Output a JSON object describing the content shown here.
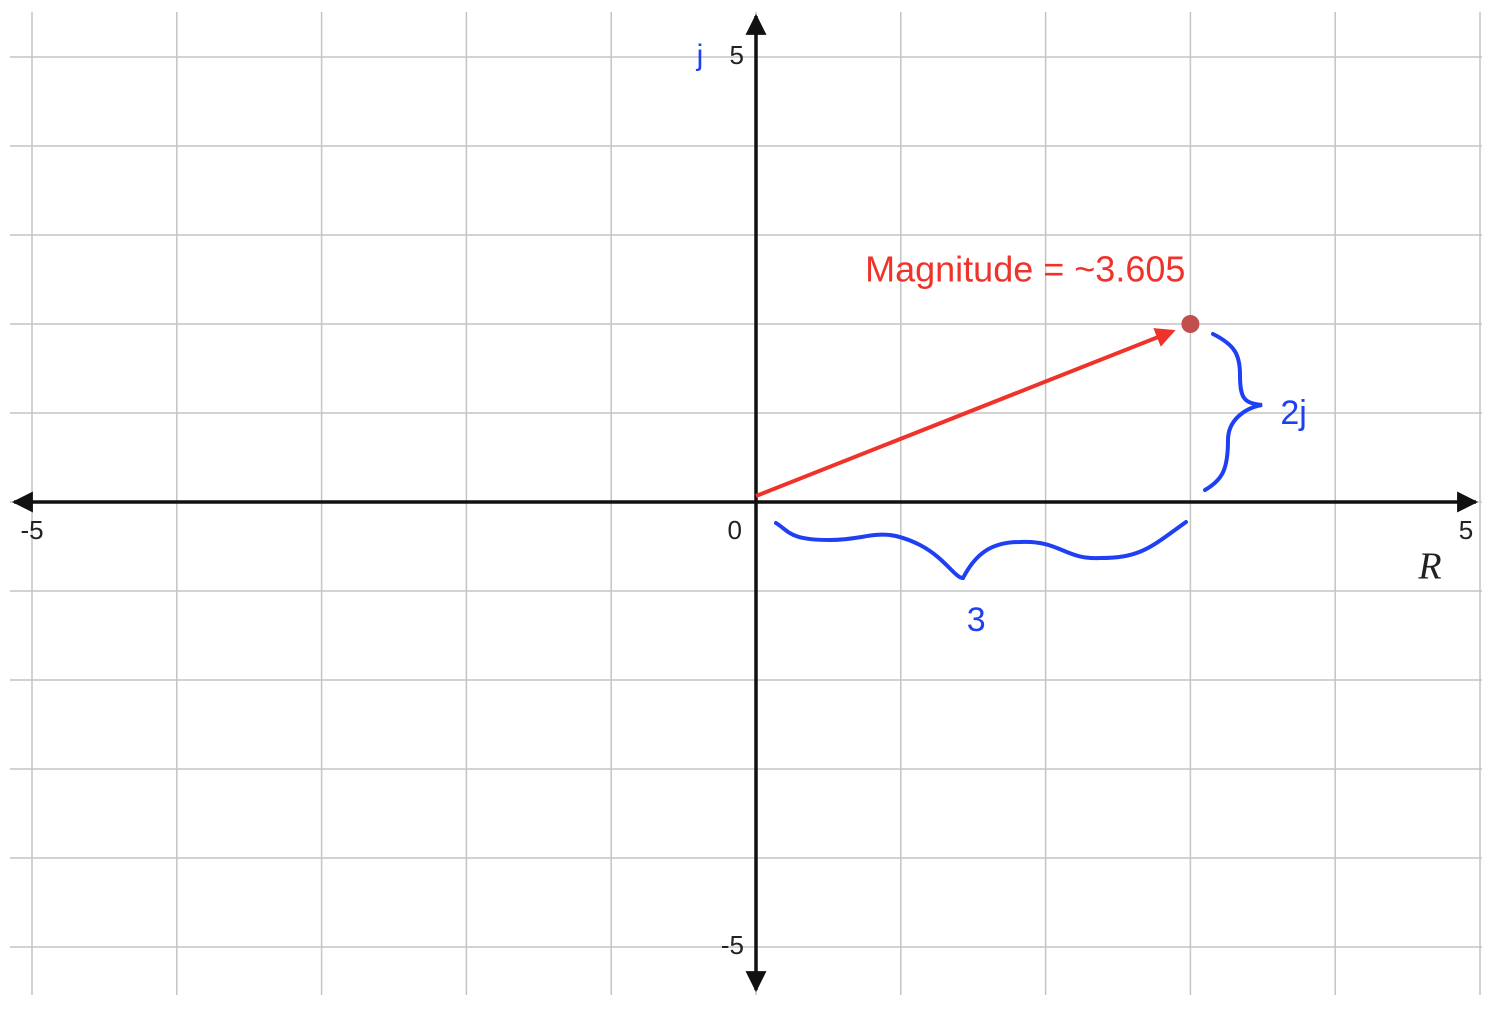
{
  "chart_data": {
    "type": "vector",
    "xlabel": "R",
    "ylabel": "j",
    "xlim": [
      -5,
      5
    ],
    "ylim": [
      -5,
      5
    ],
    "xticks": [
      -5,
      0,
      5
    ],
    "yticks": [
      -5,
      5
    ],
    "xgrid": [
      -5,
      -4,
      -3,
      -2,
      -1,
      0,
      1,
      2,
      3,
      4,
      5
    ],
    "ygrid": [
      -5,
      -4,
      -3,
      -2,
      -1,
      0,
      1,
      2,
      3,
      4,
      5
    ],
    "point": {
      "x": 3,
      "y": 2,
      "color": "#c0504d"
    },
    "vector_color": "#f0332a",
    "magnitude_label": "Magnitude = ~3.605",
    "real_part_label": "3",
    "imaginary_part_label": "2j",
    "annotation_color": "#1f3ff5"
  }
}
